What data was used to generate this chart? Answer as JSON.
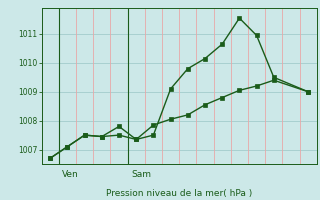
{
  "title": "",
  "xlabel": "Pression niveau de la mer( hPa )",
  "bg_color": "#cce8e8",
  "line_color": "#1a5c1a",
  "grid_color_h": "#a8d0d0",
  "grid_color_v": "#e8a8a8",
  "ylim": [
    1006.5,
    1011.9
  ],
  "xlim": [
    -0.5,
    15.5
  ],
  "yticks": [
    1007,
    1008,
    1009,
    1010,
    1011
  ],
  "ven_x": 0.5,
  "sam_x": 4.5,
  "line1_x": [
    0,
    1,
    2,
    3,
    4,
    5,
    6,
    7,
    8,
    9,
    10,
    11,
    12,
    13,
    15
  ],
  "line1_y": [
    1006.7,
    1007.1,
    1007.5,
    1007.45,
    1007.8,
    1007.35,
    1007.5,
    1009.1,
    1009.8,
    1010.15,
    1010.65,
    1011.55,
    1010.95,
    1009.5,
    1009.0
  ],
  "line2_x": [
    0,
    1,
    2,
    3,
    4,
    5,
    6,
    7,
    8,
    9,
    10,
    11,
    12,
    13,
    15
  ],
  "line2_y": [
    1006.7,
    1007.1,
    1007.5,
    1007.45,
    1007.5,
    1007.35,
    1007.85,
    1008.05,
    1008.2,
    1008.55,
    1008.8,
    1009.05,
    1009.2,
    1009.4,
    1009.0
  ],
  "xtick_positions": [
    0.5,
    4.5
  ],
  "xtick_labels": [
    "Ven",
    "Sam"
  ],
  "marker_size": 2.5,
  "linewidth": 1.0,
  "n_vgrid": 16,
  "label_fontsize": 6.5,
  "tick_fontsize": 5.5
}
